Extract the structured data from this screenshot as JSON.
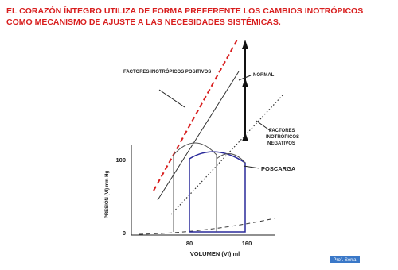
{
  "title": {
    "lines": [
      "EL CORAZÓN ÍNTEGRO UTILIZA DE FORMA PREFERENTE LOS CAMBIOS INOTRÓPICOS",
      "COMO MECANISMO DE AJUSTE A LAS NECESIDADES SISTÉMICAS."
    ]
  },
  "diagram": {
    "labels": {
      "positive": "FACTORES INOTRÓPICOS POSITIVOS",
      "normal": "NORMAL",
      "negative": [
        "FACTORES",
        "INOTRÓPICOS",
        "NEGATIVOS"
      ],
      "afterload": "POSCARGA"
    },
    "y_axis": {
      "label": "PRESIÓN (VI) mm Hg",
      "ticks": [
        "100",
        "0"
      ]
    },
    "x_axis": {
      "label": "VOLUMEN (VI) ml",
      "ticks": [
        "80",
        "160"
      ]
    }
  },
  "footer": {
    "badge": "Prof. Serra"
  }
}
